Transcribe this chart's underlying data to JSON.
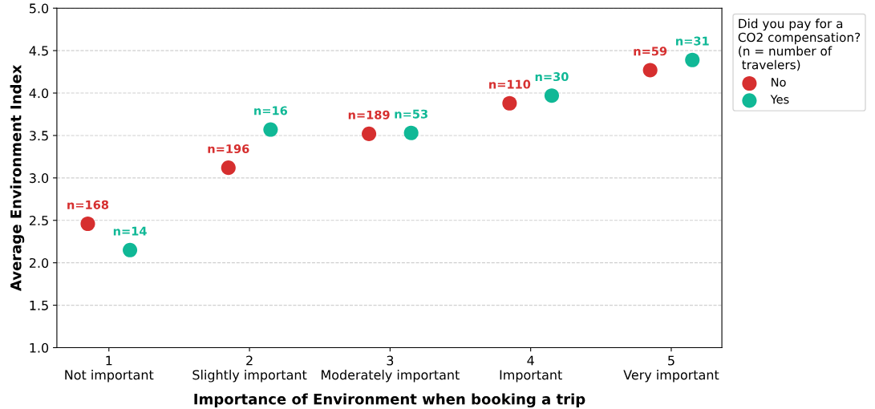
{
  "chart_data": {
    "type": "scatter",
    "xlabel": "Importance of Environment when booking a trip",
    "ylabel": "Average Environment Index",
    "legend_title": "Did you pay for a\nCO2 compensation?\n(n = number of\n travelers)",
    "xlim": [
      0.63,
      5.36
    ],
    "xticks": [
      {
        "value": 1,
        "label": "1\nNot important"
      },
      {
        "value": 2,
        "label": "2\nSlightly important"
      },
      {
        "value": 3,
        "label": "3\nModerately important"
      },
      {
        "value": 4,
        "label": "4\nImportant"
      },
      {
        "value": 5,
        "label": "5\nVery important"
      }
    ],
    "ylim": [
      1.0,
      5.0
    ],
    "yticks": [
      {
        "value": 1.0,
        "label": "1.0"
      },
      {
        "value": 1.5,
        "label": "1.5"
      },
      {
        "value": 2.0,
        "label": "2.0"
      },
      {
        "value": 2.5,
        "label": "2.5"
      },
      {
        "value": 3.0,
        "label": "3.0"
      },
      {
        "value": 3.5,
        "label": "3.5"
      },
      {
        "value": 4.0,
        "label": "4.0"
      },
      {
        "value": 4.5,
        "label": "4.5"
      },
      {
        "value": 5.0,
        "label": "5.0"
      }
    ],
    "grid": "y",
    "legend": "top right",
    "marker": "circle",
    "series": [
      {
        "name": "No",
        "color": "#d62f2f",
        "x": [
          0.85,
          1.85,
          2.85,
          3.85,
          4.85
        ],
        "values": [
          2.46,
          3.12,
          3.52,
          3.88,
          4.27
        ]
      },
      {
        "name": "Yes",
        "color": "#10b896",
        "x": [
          1.15,
          2.15,
          3.15,
          4.15,
          5.15
        ],
        "values": [
          2.15,
          3.57,
          3.53,
          3.97,
          4.39
        ]
      }
    ],
    "annotations": [
      {
        "text": "n=168",
        "x": 0.85,
        "y": 2.46
      },
      {
        "text": "n=196",
        "x": 1.85,
        "y": 3.12
      },
      {
        "text": "n=189",
        "x": 2.85,
        "y": 3.52
      },
      {
        "text": "n=110",
        "x": 3.85,
        "y": 3.88
      },
      {
        "text": "n=59",
        "x": 4.85,
        "y": 4.27
      },
      {
        "text": "n=14",
        "x": 1.15,
        "y": 2.15
      },
      {
        "text": "n=16",
        "x": 2.15,
        "y": 3.57
      },
      {
        "text": "n=53",
        "x": 3.15,
        "y": 3.53
      },
      {
        "text": "n=30",
        "x": 4.15,
        "y": 3.97
      },
      {
        "text": "n=31",
        "x": 5.15,
        "y": 4.39
      }
    ]
  }
}
